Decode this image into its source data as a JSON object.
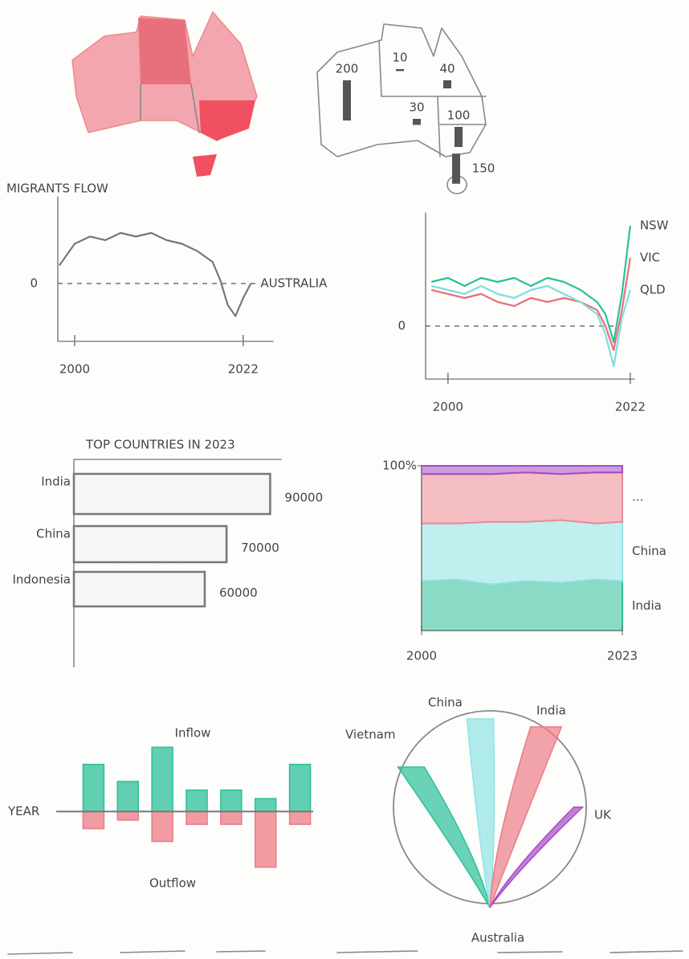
{
  "chart_data": [
    {
      "type": "map-bars",
      "values": [
        200,
        10,
        40,
        30,
        100,
        150
      ],
      "color": "#555555"
    },
    {
      "type": "line",
      "ylabel": "MIGRANTS FLOW",
      "x": [
        1998,
        2000,
        2002,
        2004,
        2006,
        2008,
        2010,
        2012,
        2014,
        2016,
        2018,
        2019,
        2020,
        2021,
        2022,
        2023
      ],
      "series": [
        {
          "name": "AUSTRALIA",
          "color": "#777777",
          "values": [
            2.5,
            5.5,
            6.5,
            6,
            7,
            6.5,
            7,
            6,
            5.5,
            4.5,
            3,
            0.5,
            -3,
            -4.5,
            -2,
            0
          ]
        }
      ],
      "xlim": [
        1997.8,
        2025.9
      ],
      "xticks": [
        2000,
        2022
      ],
      "ylim": [
        -8,
        12
      ],
      "yticks": [
        0
      ]
    },
    {
      "type": "line",
      "x": [
        1998,
        2000,
        2002,
        2004,
        2006,
        2008,
        2010,
        2012,
        2014,
        2016,
        2018,
        2019,
        2020,
        2021,
        2022
      ],
      "series": [
        {
          "name": "NSW",
          "color": "#2bbf9a",
          "values": [
            5.5,
            6,
            5,
            6,
            5.5,
            6,
            5,
            6,
            5.5,
            4.5,
            3,
            1.5,
            -2,
            4,
            12.5
          ]
        },
        {
          "name": "VIC",
          "color": "#e8707c",
          "values": [
            4.5,
            4,
            3.5,
            4,
            3,
            2.5,
            3.5,
            3,
            3.5,
            3,
            2,
            0,
            -3,
            2,
            8.5
          ]
        },
        {
          "name": "QLD",
          "color": "#7fdde0",
          "values": [
            5,
            4.5,
            4,
            5,
            4,
            3.5,
            4.5,
            5,
            4,
            3,
            1.5,
            -1,
            -5,
            1,
            4.5
          ]
        }
      ],
      "xlim": [
        1997.3,
        2022.5
      ],
      "xticks": [
        2000,
        2022
      ],
      "ylim": [
        -6.6,
        14.1
      ],
      "yticks": [
        0
      ]
    },
    {
      "type": "hbar",
      "title": "TOP COUNTRIES IN 2023",
      "categories": [
        "India",
        "China",
        "Indonesia"
      ],
      "values": [
        90000,
        70000,
        60000
      ],
      "color": "#777777",
      "xlim": [
        0,
        95000
      ]
    },
    {
      "type": "stacked-area",
      "x": [
        2000,
        2004,
        2008,
        2012,
        2016,
        2020,
        2023
      ],
      "series": [
        {
          "name": "India",
          "color": "#2bbf9a",
          "values": [
            30,
            31,
            28,
            30,
            29,
            31,
            30
          ]
        },
        {
          "name": "China",
          "color": "#8fe3e6",
          "values": [
            35,
            34,
            38,
            36,
            38,
            34,
            36
          ]
        },
        {
          "name": "...",
          "color": "#ec8a96",
          "values": [
            30,
            30,
            29,
            30,
            28,
            31,
            30
          ]
        },
        {
          "color": "#a64ac9",
          "values": [
            5,
            5,
            5,
            4,
            5,
            4,
            4
          ]
        }
      ],
      "xlim": [
        2000,
        2023
      ],
      "xticks": [
        2000,
        2023
      ],
      "ylim": [
        0,
        100
      ],
      "yticks": [
        {
          "value": 100,
          "label": "100%"
        }
      ]
    },
    {
      "type": "diverging-bar",
      "xlabel": "YEAR",
      "categories": [
        null,
        null,
        null,
        null,
        null,
        null,
        null
      ],
      "series": [
        {
          "name": "Inflow",
          "color": "#2bbf9a",
          "values": [
            55,
            35,
            75,
            25,
            25,
            15,
            55
          ]
        },
        {
          "name": "Outflow",
          "color": "#ec7a86",
          "values": [
            -20,
            -10,
            -35,
            -15,
            -15,
            -65,
            -15
          ]
        }
      ],
      "ylim": [
        -70,
        80
      ]
    },
    {
      "type": "flow",
      "target": "Australia",
      "categories": [
        "Vietnam",
        "China",
        "India",
        "UK"
      ],
      "values": [
        30,
        30,
        35,
        10
      ],
      "colors": [
        "#2bbf9a",
        "#8fe3e6",
        "#ec7a86",
        "#a64ac9"
      ]
    }
  ]
}
